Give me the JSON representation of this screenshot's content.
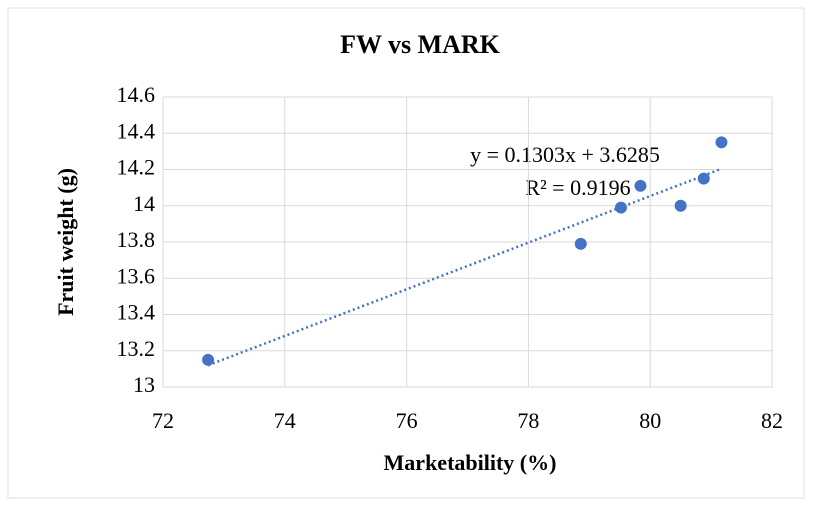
{
  "chart_data": {
    "type": "scatter",
    "title": "FW vs MARK",
    "x_label": "Marketability (%)",
    "y_label": "Fruit weight (g)",
    "series": [
      {
        "name": "FW",
        "color": "#4472c4",
        "x": [
          72.74,
          78.86,
          79.52,
          79.84,
          80.5,
          80.88,
          81.17
        ],
        "values": [
          13.15,
          13.79,
          13.99,
          14.11,
          14.0,
          14.15,
          14.35
        ]
      }
    ],
    "trendline": {
      "type": "linear",
      "color": "#4472c4",
      "style": "dotted"
    },
    "annotations": [
      "y = 0.1303x + 3.6285",
      "R² = 0.9196"
    ],
    "xlim": [
      72,
      82
    ],
    "xticks": [
      72,
      74,
      76,
      78,
      80,
      82
    ],
    "ylim": [
      13,
      14.6
    ],
    "yticks": [
      13,
      13.2,
      13.4,
      13.6,
      13.8,
      14,
      14.2,
      14.4,
      14.6
    ],
    "grid": true
  }
}
